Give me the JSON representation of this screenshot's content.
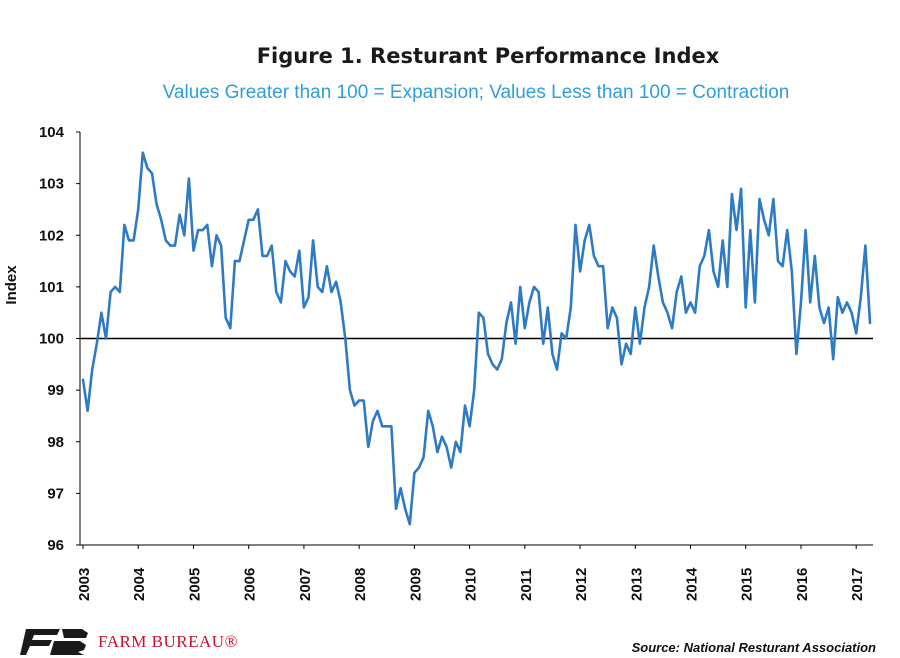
{
  "header": {
    "title": "Figure 1. Resturant Performance Index",
    "subtitle": "Values Greater than 100 = Expansion; Values Less  than 100 = Contraction"
  },
  "footer": {
    "source": "Source: National Resturant Association",
    "brand": "FARM BUREAU®"
  },
  "colors": {
    "line": "#2e7bc4",
    "subtitle": "#2e9fd8",
    "brand_red": "#c8102e",
    "brand_dark": "#1a1a1a"
  },
  "chart_data": {
    "type": "line",
    "title": "Figure 1. Resturant Performance Index",
    "subtitle": "Values Greater than 100 = Expansion; Values Less  than 100 = Contraction",
    "ylabel": "Index",
    "xlabel": "",
    "ylim": [
      96,
      104
    ],
    "yticks": [
      96,
      97,
      98,
      99,
      100,
      101,
      102,
      103,
      104
    ],
    "xticks": [
      "2003",
      "2004",
      "2005",
      "2006",
      "2007",
      "2008",
      "2009",
      "2010",
      "2011",
      "2012",
      "2013",
      "2014",
      "2015",
      "2016",
      "2017"
    ],
    "reference_line": 100,
    "grid": false,
    "legend": "none",
    "series": [
      {
        "start": "2003-01",
        "frequency": "monthly",
        "values": [
          99.2,
          98.6,
          99.4,
          99.9,
          100.5,
          100.0,
          100.9,
          101.0,
          100.9,
          102.2,
          101.9,
          101.9,
          102.5,
          103.6,
          103.3,
          103.2,
          102.6,
          102.3,
          101.9,
          101.8,
          101.8,
          102.4,
          102.0,
          103.1,
          101.7,
          102.1,
          102.1,
          102.2,
          101.4,
          102.0,
          101.8,
          100.4,
          100.2,
          101.5,
          101.5,
          101.9,
          102.3,
          102.3,
          102.5,
          101.6,
          101.6,
          101.8,
          100.9,
          100.7,
          101.5,
          101.3,
          101.2,
          101.7,
          100.6,
          100.8,
          101.9,
          101.0,
          100.9,
          101.4,
          100.9,
          101.1,
          100.7,
          100.0,
          99.0,
          98.7,
          98.8,
          98.8,
          97.9,
          98.4,
          98.6,
          98.3,
          98.3,
          98.3,
          96.7,
          97.1,
          96.7,
          96.4,
          97.4,
          97.5,
          97.7,
          98.6,
          98.3,
          97.8,
          98.1,
          97.9,
          97.5,
          98.0,
          97.8,
          98.7,
          98.3,
          99.0,
          100.5,
          100.4,
          99.7,
          99.5,
          99.4,
          99.6,
          100.3,
          100.7,
          99.9,
          101.0,
          100.2,
          100.7,
          101.0,
          100.9,
          99.9,
          100.6,
          99.7,
          99.4,
          100.1,
          100.0,
          100.6,
          102.2,
          101.3,
          101.9,
          102.2,
          101.6,
          101.4,
          101.4,
          100.2,
          100.6,
          100.4,
          99.5,
          99.9,
          99.7,
          100.6,
          99.9,
          100.6,
          101.0,
          101.8,
          101.2,
          100.7,
          100.5,
          100.2,
          100.9,
          101.2,
          100.5,
          100.7,
          100.5,
          101.4,
          101.6,
          102.1,
          101.3,
          101.0,
          101.9,
          101.0,
          102.8,
          102.1,
          102.9,
          100.6,
          102.1,
          100.7,
          102.7,
          102.3,
          102.0,
          102.7,
          101.5,
          101.4,
          102.1,
          101.3,
          99.7,
          100.7,
          102.1,
          100.7,
          101.6,
          100.6,
          100.3,
          100.6,
          99.6,
          100.8,
          100.5,
          100.7,
          100.5,
          100.1,
          100.8,
          101.8,
          100.3
        ]
      }
    ]
  }
}
